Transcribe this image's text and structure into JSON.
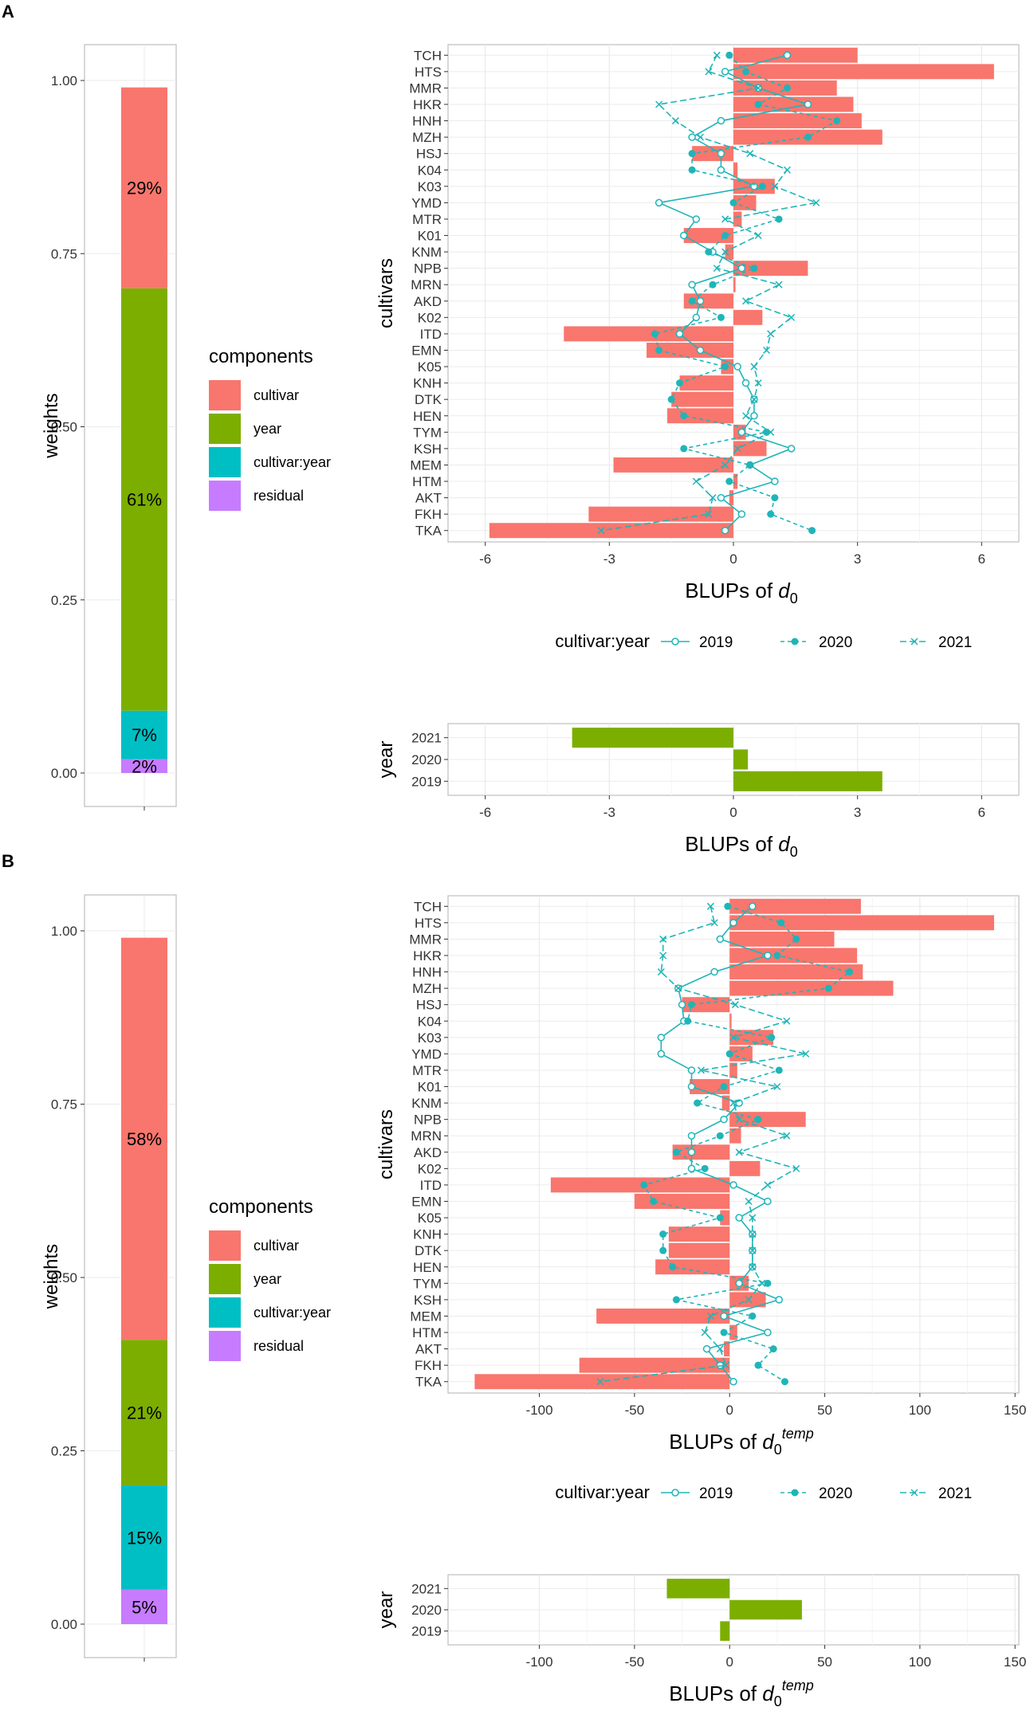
{
  "colors": {
    "cultivar": "#F8766D",
    "year": "#7CAE00",
    "cultivar_year": "#00BFC4",
    "residual": "#C77CFF",
    "line": "#1FB5B8",
    "grid": "#EBEBEB",
    "panel_border": "#BDBDBD",
    "text": "#333333"
  },
  "panels": [
    {
      "label": "A",
      "stack": {
        "ylabel": "weights",
        "ticks": [
          "0.00",
          "0.25",
          "0.50",
          "0.75",
          "1.00"
        ],
        "segments": [
          {
            "component": "residual",
            "value": 0.02,
            "label": "2%"
          },
          {
            "component": "cultivar:year",
            "value": 0.07,
            "label": "7%"
          },
          {
            "component": "year",
            "value": 0.61,
            "label": "61%"
          },
          {
            "component": "cultivar",
            "value": 0.29,
            "label": "29%"
          }
        ]
      },
      "legend": {
        "title": "components",
        "items": [
          {
            "key": "cultivar",
            "label": "cultivar"
          },
          {
            "key": "year",
            "label": "year"
          },
          {
            "key": "cultivar_year",
            "label": "cultivar:year"
          },
          {
            "key": "residual",
            "label": "residual"
          }
        ]
      },
      "line_legend": {
        "title": "cultivar:year",
        "items": [
          "2019",
          "2020",
          "2021"
        ]
      },
      "year_chart": {
        "ylabel": "year",
        "categories": [
          "2021",
          "2020",
          "2019"
        ],
        "values": [
          -3.9,
          0.35,
          3.6
        ]
      }
    },
    {
      "label": "B",
      "stack": {
        "ylabel": "weights",
        "ticks": [
          "0.00",
          "0.25",
          "0.50",
          "0.75",
          "1.00"
        ],
        "segments": [
          {
            "component": "residual",
            "value": 0.05,
            "label": "5%"
          },
          {
            "component": "cultivar:year",
            "value": 0.15,
            "label": "15%"
          },
          {
            "component": "year",
            "value": 0.21,
            "label": "21%"
          },
          {
            "component": "cultivar",
            "value": 0.58,
            "label": "58%"
          }
        ]
      },
      "legend": {
        "title": "components",
        "items": [
          {
            "key": "cultivar",
            "label": "cultivar"
          },
          {
            "key": "year",
            "label": "year"
          },
          {
            "key": "cultivar_year",
            "label": "cultivar:year"
          },
          {
            "key": "residual",
            "label": "residual"
          }
        ]
      },
      "line_legend": {
        "title": "cultivar:year",
        "items": [
          "2019",
          "2020",
          "2021"
        ]
      },
      "year_chart": {
        "ylabel": "year",
        "categories": [
          "2021",
          "2020",
          "2019"
        ],
        "values": [
          -33,
          38,
          -5
        ]
      }
    }
  ],
  "chart_data": [
    {
      "panel": "A",
      "type": "bar",
      "orientation": "horizontal",
      "title": "",
      "xlabel": "BLUPs of d0",
      "xlabel_parts": {
        "main": "BLUPs of ",
        "var": "d",
        "sub": "0",
        "sup": ""
      },
      "ylabel": "cultivars",
      "xlim": [
        -6.9,
        6.9
      ],
      "xticks": [
        -6,
        -3,
        0,
        3,
        6
      ],
      "xtick_labels": [
        "-6",
        "-3",
        "0",
        "3",
        "6"
      ],
      "categories": [
        "TCH",
        "HTS",
        "MMR",
        "HKR",
        "HNH",
        "MZH",
        "HSJ",
        "K04",
        "K03",
        "YMD",
        "MTR",
        "K01",
        "KNM",
        "NPB",
        "MRN",
        "AKD",
        "K02",
        "ITD",
        "EMN",
        "K05",
        "KNH",
        "DTK",
        "HEN",
        "TYM",
        "KSH",
        "MEM",
        "HTM",
        "AKT",
        "FKH",
        "TKA"
      ],
      "bars": {
        "name": "cultivar",
        "values": [
          3.0,
          6.3,
          2.5,
          2.9,
          3.1,
          3.6,
          -1.0,
          0.1,
          1.0,
          0.55,
          0.2,
          -1.2,
          -0.2,
          1.8,
          0.05,
          -1.2,
          0.7,
          -4.1,
          -2.1,
          -0.3,
          -1.3,
          -1.5,
          -1.6,
          0.3,
          0.8,
          -2.9,
          0.1,
          -0.1,
          -3.5,
          -5.9
        ]
      },
      "series": [
        {
          "name": "2019",
          "values": [
            1.3,
            -0.2,
            0.6,
            1.8,
            -0.3,
            -1.0,
            -0.3,
            -0.3,
            0.5,
            -1.8,
            -0.9,
            -1.2,
            -0.5,
            0.2,
            -1.0,
            -0.8,
            -0.9,
            -1.3,
            -0.8,
            0.1,
            0.3,
            0.5,
            0.5,
            0.2,
            1.4,
            0.4,
            1.0,
            -0.3,
            0.2,
            -0.2
          ]
        },
        {
          "name": "2020",
          "values": [
            -0.1,
            0.3,
            1.3,
            0.6,
            2.5,
            1.8,
            -1.0,
            -1.0,
            0.7,
            0.0,
            1.1,
            -0.2,
            -0.6,
            0.5,
            -0.5,
            -1.0,
            -0.3,
            -1.9,
            -1.8,
            -0.2,
            -1.3,
            -1.5,
            -1.2,
            0.8,
            -1.2,
            0.4,
            -0.1,
            1.0,
            0.9,
            1.9
          ]
        },
        {
          "name": "2021",
          "values": [
            -0.4,
            -0.6,
            0.6,
            -1.8,
            -1.4,
            -0.8,
            0.4,
            1.3,
            1.0,
            2.0,
            -0.2,
            0.6,
            -0.2,
            -0.4,
            1.1,
            0.3,
            1.4,
            0.9,
            0.8,
            0.5,
            0.6,
            0.5,
            0.3,
            0.9,
            0.1,
            -0.2,
            -0.9,
            -0.5,
            -0.6,
            -3.2
          ]
        }
      ]
    },
    {
      "panel": "A",
      "type": "bar",
      "orientation": "horizontal",
      "xlabel": "BLUPs of d0",
      "xlabel_parts": {
        "main": "BLUPs of ",
        "var": "d",
        "sub": "0",
        "sup": ""
      },
      "ylabel": "year",
      "xlim": [
        -6.9,
        6.9
      ],
      "xticks": [
        -6,
        -3,
        0,
        3,
        6
      ],
      "xtick_labels": [
        "-6",
        "-3",
        "0",
        "3",
        "6"
      ],
      "categories": [
        "2021",
        "2020",
        "2019"
      ],
      "values": [
        -3.9,
        0.35,
        3.6
      ]
    },
    {
      "panel": "A",
      "type": "bar",
      "orientation": "vertical-stacked",
      "ylabel": "weights",
      "ylim": [
        0,
        1
      ],
      "categories": [
        "residual",
        "cultivar:year",
        "year",
        "cultivar"
      ],
      "values": [
        0.02,
        0.07,
        0.61,
        0.29
      ]
    },
    {
      "panel": "B",
      "type": "bar",
      "orientation": "horizontal",
      "title": "",
      "xlabel": "BLUPs of d0temp",
      "xlabel_parts": {
        "main": "BLUPs of ",
        "var": "d",
        "sub": "0",
        "sup": "temp"
      },
      "ylabel": "cultivars",
      "xlim": [
        -148,
        152
      ],
      "xticks": [
        -100,
        -50,
        0,
        50,
        100,
        150
      ],
      "xtick_labels": [
        "-100",
        "-50",
        "0",
        "50",
        "100",
        "150"
      ],
      "categories": [
        "TCH",
        "HTS",
        "MMR",
        "HKR",
        "HNH",
        "MZH",
        "HSJ",
        "K04",
        "K03",
        "YMD",
        "MTR",
        "K01",
        "KNM",
        "NPB",
        "MRN",
        "AKD",
        "K02",
        "ITD",
        "EMN",
        "K05",
        "KNH",
        "DTK",
        "HEN",
        "TYM",
        "KSH",
        "MEM",
        "HTM",
        "AKT",
        "FKH",
        "TKA"
      ],
      "bars": {
        "name": "cultivar",
        "values": [
          69,
          139,
          55,
          67,
          70,
          86,
          -25,
          1,
          23,
          12,
          4,
          -21,
          -4,
          40,
          6,
          -30,
          16,
          -94,
          -50,
          -5,
          -32,
          -32,
          -39,
          10,
          19,
          -70,
          4,
          -3,
          -79,
          -134
        ]
      },
      "series": [
        {
          "name": "2019",
          "values": [
            12,
            2,
            -5,
            20,
            -8,
            -27,
            -25,
            -24,
            -36,
            -36,
            -20,
            -20,
            5,
            -3,
            -20,
            -20,
            -20,
            2,
            20,
            5,
            12,
            12,
            12,
            5,
            26,
            -3,
            20,
            -12,
            -5,
            2
          ]
        },
        {
          "name": "2020",
          "values": [
            -1,
            27,
            35,
            25,
            63,
            52,
            -20,
            -22,
            22,
            0,
            26,
            -3,
            -17,
            15,
            -5,
            -28,
            -13,
            -45,
            -40,
            -5,
            -35,
            -35,
            -30,
            20,
            -28,
            12,
            -3,
            23,
            15,
            29
          ]
        },
        {
          "name": "2021",
          "values": [
            -10,
            -8,
            -35,
            -35,
            -36,
            -27,
            3,
            30,
            2,
            40,
            -15,
            25,
            2,
            5,
            30,
            5,
            35,
            20,
            10,
            12,
            12,
            12,
            12,
            17,
            10,
            -10,
            -13,
            -5,
            -2,
            -68
          ]
        }
      ]
    },
    {
      "panel": "B",
      "type": "bar",
      "orientation": "horizontal",
      "xlabel": "BLUPs of d0temp",
      "xlabel_parts": {
        "main": "BLUPs of ",
        "var": "d",
        "sub": "0",
        "sup": "temp"
      },
      "ylabel": "year",
      "xlim": [
        -148,
        152
      ],
      "xticks": [
        -100,
        -50,
        0,
        50,
        100,
        150
      ],
      "xtick_labels": [
        "-100",
        "-50",
        "0",
        "50",
        "100",
        "150"
      ],
      "categories": [
        "2021",
        "2020",
        "2019"
      ],
      "values": [
        -33,
        38,
        -5
      ]
    },
    {
      "panel": "B",
      "type": "bar",
      "orientation": "vertical-stacked",
      "ylabel": "weights",
      "ylim": [
        0,
        1
      ],
      "categories": [
        "residual",
        "cultivar:year",
        "year",
        "cultivar"
      ],
      "values": [
        0.05,
        0.15,
        0.21,
        0.58
      ]
    }
  ]
}
